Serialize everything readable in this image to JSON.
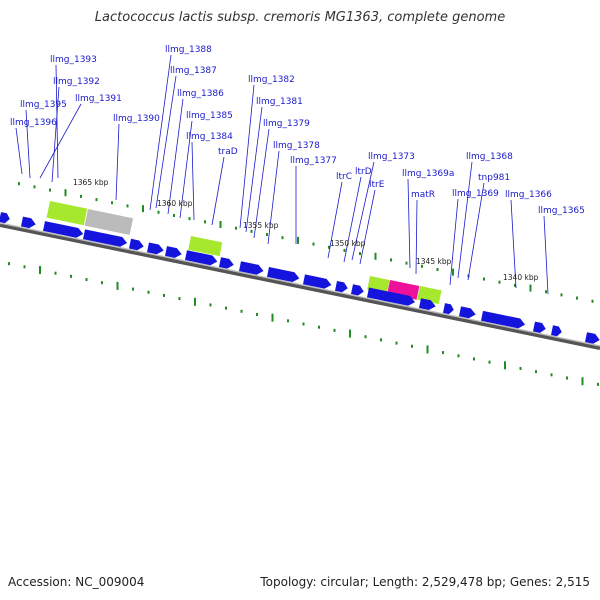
{
  "title": "Lactococcus lactis subsp. cremoris MG1363, complete genome",
  "footer": {
    "accession": "Accession: NC_009004",
    "topology": "Topology: circular; Length: 2,529,478 bp; Genes: 2,515"
  },
  "colors": {
    "gene": "#1414dd",
    "backbone": "#888888",
    "tick": "#228b22",
    "label": "#1a1acc",
    "feature_green": "#a6e82e",
    "feature_grey": "#bbbbbb",
    "feature_pink": "#ee1199"
  },
  "position_labels": [
    "1365 kbp",
    "1360 kbp",
    "1355 kbp",
    "1350 kbp",
    "1345 kbp",
    "1340 kbp"
  ],
  "gene_labels": [
    "llmg_1393",
    "llmg_1392",
    "llmg_1391",
    "llmg_1395",
    "llmg_1396",
    "llmg_1390",
    "llmg_1388",
    "llmg_1387",
    "llmg_1386",
    "llmg_1385",
    "llmg_1384",
    "traD",
    "llmg_1382",
    "llmg_1381",
    "llmg_1379",
    "llmg_1378",
    "llmg_1377",
    "llmg_1373",
    "ltrC",
    "ltrD",
    "ltrE",
    "llmg_1369a",
    "matR",
    "llmg_1368",
    "tnp981",
    "llmg_1369",
    "llmg_1366",
    "llmg_1365"
  ]
}
